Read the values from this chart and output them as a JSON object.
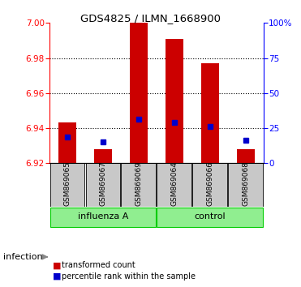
{
  "title": "GDS4825 / ILMN_1668900",
  "samples": [
    "GSM869065",
    "GSM869067",
    "GSM869069",
    "GSM869064",
    "GSM869066",
    "GSM869068"
  ],
  "groups": [
    "influenza A",
    "influenza A",
    "influenza A",
    "control",
    "control",
    "control"
  ],
  "group_labels": [
    "influenza A",
    "control"
  ],
  "bar_baseline": 6.92,
  "bar_tops": [
    6.943,
    6.928,
    7.002,
    6.991,
    6.977,
    6.928
  ],
  "blue_markers": [
    6.935,
    6.932,
    6.945,
    6.943,
    6.941,
    6.933
  ],
  "ylim_left": [
    6.92,
    7.0
  ],
  "ylim_right": [
    0,
    100
  ],
  "yticks_left": [
    6.92,
    6.94,
    6.96,
    6.98,
    7.0
  ],
  "yticks_right": [
    0,
    25,
    50,
    75,
    100
  ],
  "bar_color": "#CC0000",
  "blue_color": "#0000CC",
  "infection_label": "infection",
  "legend_items": [
    "transformed count",
    "percentile rank within the sample"
  ],
  "light_green": "#90EE90",
  "dark_green": "#00CC00",
  "gray": "#C8C8C8"
}
